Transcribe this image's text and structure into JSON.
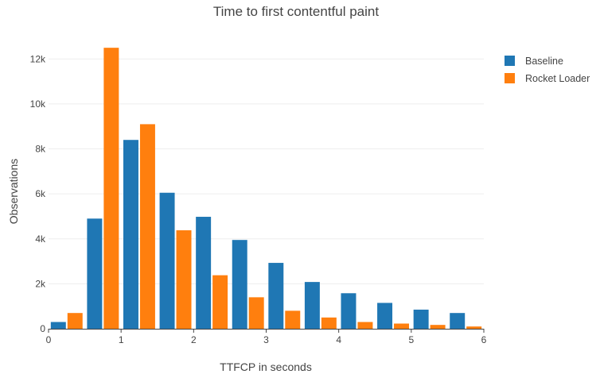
{
  "chart_data": {
    "type": "bar",
    "title": "Time to first contentful paint",
    "xlabel": "TTFCP in seconds",
    "ylabel": "Observations",
    "xlim": [
      0,
      6
    ],
    "ylim": [
      0,
      13000
    ],
    "x_ticks": [
      0,
      1,
      2,
      3,
      4,
      5,
      6
    ],
    "x_tick_labels": [
      "0",
      "1",
      "2",
      "3",
      "4",
      "5",
      "6"
    ],
    "y_ticks": [
      0,
      2000,
      4000,
      6000,
      8000,
      10000,
      12000
    ],
    "y_tick_labels": [
      "0",
      "2k",
      "4k",
      "6k",
      "8k",
      "10k",
      "12k"
    ],
    "grid": true,
    "legend_position": "top-right",
    "bin_width": 0.5,
    "bin_starts": [
      0,
      0.5,
      1,
      1.5,
      2,
      2.5,
      3,
      3.5,
      4,
      4.5,
      5,
      5.5
    ],
    "series": [
      {
        "name": "Baseline",
        "color": "#1f77b4",
        "values": [
          300,
          4900,
          8400,
          6050,
          4980,
          3950,
          2930,
          2080,
          1580,
          1150,
          850,
          700
        ]
      },
      {
        "name": "Rocket Loader",
        "color": "#ff7f0e",
        "values": [
          700,
          12500,
          9100,
          4380,
          2380,
          1400,
          800,
          500,
          300,
          230,
          170,
          100
        ]
      }
    ]
  }
}
